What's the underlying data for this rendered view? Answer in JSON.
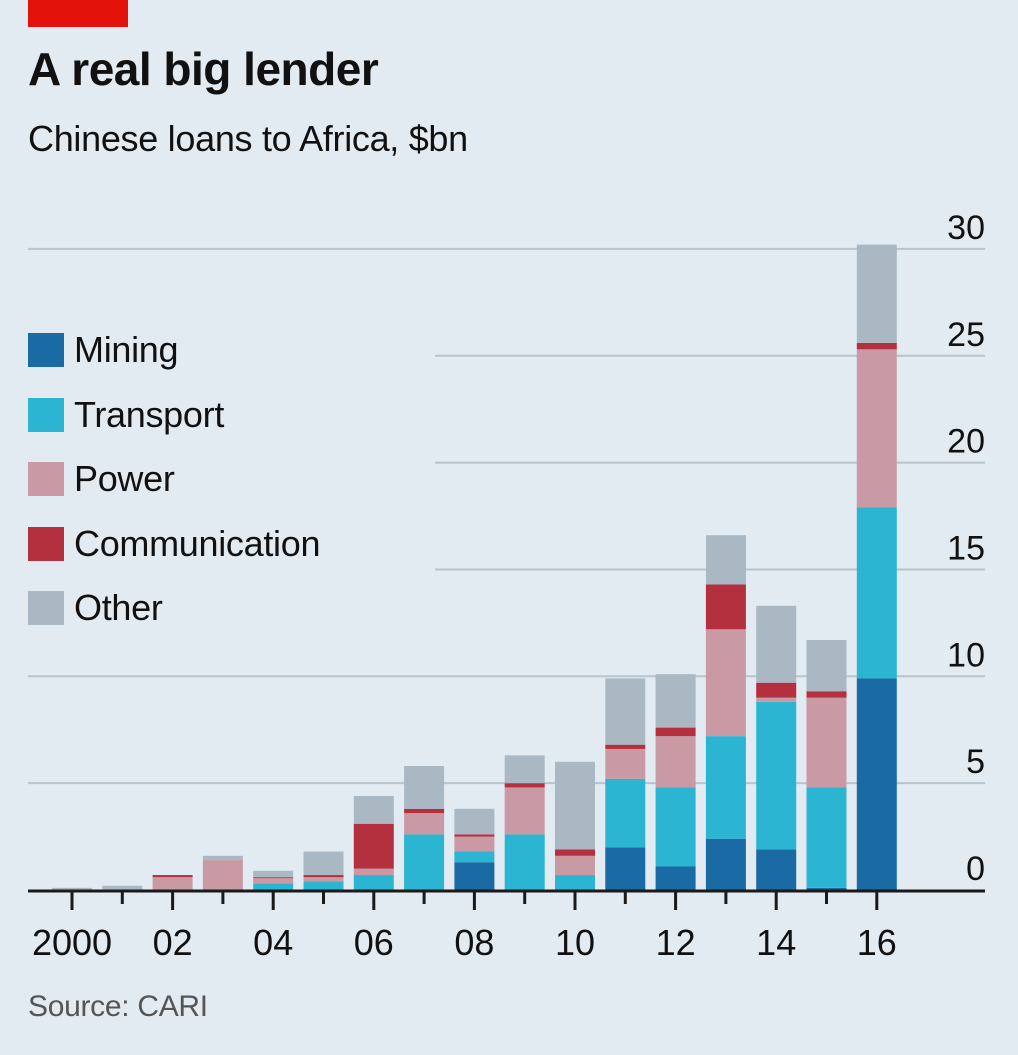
{
  "header": {
    "title": "A real big lender",
    "subtitle": "Chinese loans to Africa, $bn"
  },
  "source": "Source: CARI",
  "colors": {
    "brand_tab": "#e3120b",
    "background": "#e2ebf1",
    "Mining": "#1a6aa3",
    "Transport": "#2bb5d3",
    "Power": "#c99aa3",
    "Communication": "#b5303f",
    "Other": "#a9b8c3",
    "gridline": "#b9c3ca",
    "axis": "#1a1a1a"
  },
  "chart_data": {
    "type": "bar",
    "stacked": true,
    "title": "A real big lender",
    "subtitle": "Chinese loans to Africa, $bn",
    "xlabel": "",
    "ylabel": "",
    "ylim": [
      0,
      30
    ],
    "yticks": [
      0,
      5,
      10,
      15,
      20,
      25,
      30
    ],
    "y_axis_side": "right",
    "grid": true,
    "legend_position": "top-left",
    "categories": [
      "2000",
      "2001",
      "2002",
      "2003",
      "2004",
      "2005",
      "2006",
      "2007",
      "2008",
      "2009",
      "2010",
      "2011",
      "2012",
      "2013",
      "2014",
      "2015",
      "2016"
    ],
    "x_tick_labels": [
      "2000",
      "",
      "02",
      "",
      "04",
      "",
      "06",
      "",
      "08",
      "",
      "10",
      "",
      "12",
      "",
      "14",
      "",
      "16"
    ],
    "series": [
      {
        "name": "Mining",
        "values": [
          0,
          0,
          0,
          0,
          0,
          0,
          0,
          0,
          1.3,
          0,
          0,
          2.0,
          1.1,
          2.4,
          1.9,
          0.1,
          9.9
        ]
      },
      {
        "name": "Transport",
        "values": [
          0,
          0,
          0,
          0,
          0.3,
          0.4,
          0.7,
          2.6,
          0.5,
          2.6,
          0.7,
          3.2,
          3.7,
          4.8,
          6.9,
          4.7,
          8.0
        ]
      },
      {
        "name": "Power",
        "values": [
          0,
          0,
          0.6,
          1.4,
          0.25,
          0.2,
          0.3,
          1.0,
          0.7,
          2.2,
          0.9,
          1.4,
          2.4,
          5.0,
          0.2,
          4.2,
          7.4
        ]
      },
      {
        "name": "Communication",
        "values": [
          0,
          0,
          0.1,
          0,
          0.05,
          0.1,
          2.1,
          0.2,
          0.1,
          0.2,
          0.3,
          0.2,
          0.4,
          2.1,
          0.7,
          0.3,
          0.3
        ]
      },
      {
        "name": "Other",
        "values": [
          0.1,
          0.2,
          0,
          0.2,
          0.3,
          1.1,
          1.3,
          2.0,
          1.2,
          1.3,
          4.1,
          3.1,
          2.5,
          2.3,
          3.6,
          2.4,
          4.6
        ]
      }
    ]
  }
}
